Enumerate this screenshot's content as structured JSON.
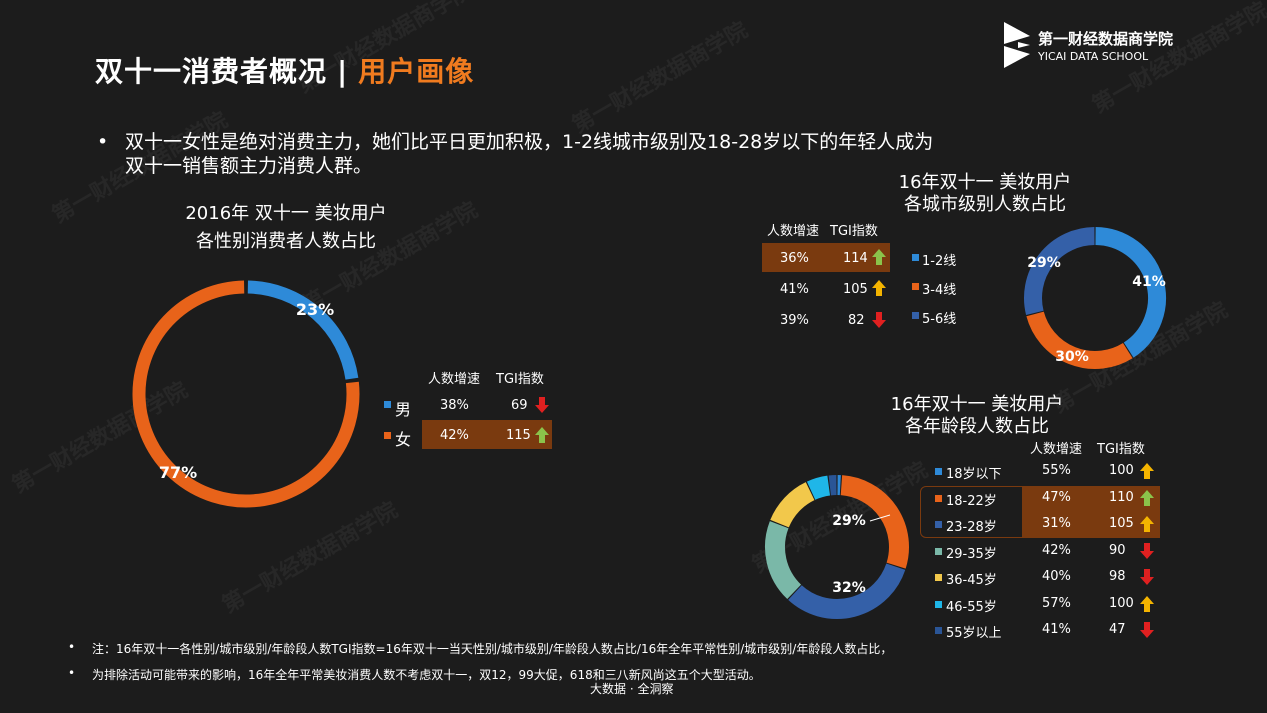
{
  "header": {
    "title_main": "双十一消费者概况",
    "title_sep": "|",
    "title_highlight": "用户画像"
  },
  "logo": {
    "name": "第一财经数据商学院",
    "sub": "YICAI DATA SCHOOL"
  },
  "watermark": "第一财经数据商学院",
  "bullet": {
    "marker": "•",
    "line1": "双十一女性是绝对消费主力，她们比平日更加积极，1-2线城市级别及18-28岁以下的年轻人成为",
    "line2": "双十一销售额主力消费人群。"
  },
  "colors": {
    "orange": "#e8631a",
    "blue": "#2e8ad8",
    "navy": "#3460a8",
    "teal": "#7ab8a8",
    "yellow": "#f2c84b",
    "cyan": "#1fb6e8",
    "darkblue": "#2a5596",
    "highlight": "#7a3a0f",
    "green_arrow": "#8bc34a",
    "yellow_arrow": "#f4b400",
    "red_arrow": "#e02020"
  },
  "chart_data": [
    {
      "type": "pie",
      "title": "2016年 双十一 美妆用户",
      "subtitle": "各性别消费者人数占比",
      "categories": [
        "男",
        "女"
      ],
      "values": [
        23,
        77
      ],
      "labels": [
        "23%",
        "77%"
      ],
      "colors": [
        "#2e8ad8",
        "#e8631a"
      ],
      "table": {
        "headers": [
          "人数增速",
          "TGI指数"
        ],
        "rows": [
          {
            "name": "男",
            "growth": "38%",
            "tgi": "69",
            "arrow": "down",
            "highlight": false
          },
          {
            "name": "女",
            "growth": "42%",
            "tgi": "115",
            "arrow": "up-green",
            "highlight": true
          }
        ]
      }
    },
    {
      "type": "pie",
      "title": "16年双十一 美妆用户",
      "subtitle": "各城市级别人数占比",
      "categories": [
        "1-2线",
        "3-4线",
        "5-6线"
      ],
      "values": [
        41,
        30,
        29
      ],
      "labels": [
        "41%",
        "30%",
        "29%"
      ],
      "colors": [
        "#2e8ad8",
        "#e8631a",
        "#3460a8"
      ],
      "table": {
        "headers": [
          "人数增速",
          "TGI指数"
        ],
        "rows": [
          {
            "name": "1-2线",
            "growth": "36%",
            "tgi": "114",
            "arrow": "up-green",
            "highlight": true
          },
          {
            "name": "3-4线",
            "growth": "41%",
            "tgi": "105",
            "arrow": "up-yellow",
            "highlight": false
          },
          {
            "name": "5-6线",
            "growth": "39%",
            "tgi": "82",
            "arrow": "down",
            "highlight": false
          }
        ]
      }
    },
    {
      "type": "pie",
      "title": "16年双十一 美妆用户",
      "subtitle": "各年龄段人数占比",
      "categories": [
        "18岁以下",
        "18-22岁",
        "23-28岁",
        "29-35岁",
        "36-45岁",
        "46-55岁",
        "55岁以上"
      ],
      "values": [
        1,
        29,
        32,
        19,
        12,
        5,
        2
      ],
      "labels": [
        "",
        "29%",
        "32%",
        "",
        "",
        "",
        ""
      ],
      "colors": [
        "#2e8ad8",
        "#e8631a",
        "#3460a8",
        "#7ab8a8",
        "#f2c84b",
        "#1fb6e8",
        "#2a5596"
      ],
      "table": {
        "headers": [
          "人数增速",
          "TGI指数"
        ],
        "rows": [
          {
            "name": "18岁以下",
            "growth": "55%",
            "tgi": "100",
            "arrow": "up-yellow",
            "highlight": false
          },
          {
            "name": "18-22岁",
            "growth": "47%",
            "tgi": "110",
            "arrow": "up-green",
            "highlight": true
          },
          {
            "name": "23-28岁",
            "growth": "31%",
            "tgi": "105",
            "arrow": "up-yellow",
            "highlight": true
          },
          {
            "name": "29-35岁",
            "growth": "42%",
            "tgi": "90",
            "arrow": "down",
            "highlight": false
          },
          {
            "name": "36-45岁",
            "growth": "40%",
            "tgi": "98",
            "arrow": "down",
            "highlight": false
          },
          {
            "name": "46-55岁",
            "growth": "57%",
            "tgi": "100",
            "arrow": "up-yellow",
            "highlight": false
          },
          {
            "name": "55岁以上",
            "growth": "41%",
            "tgi": "47",
            "arrow": "down",
            "highlight": false
          }
        ]
      }
    }
  ],
  "notes": {
    "marker": "•",
    "note1": "注：16年双十一各性别/城市级别/年龄段人数TGI指数=16年双十一当天性别/城市级别/年龄段人数占比/16年全年平常性别/城市级别/年龄段人数占比，",
    "note2": "为排除活动可能带来的影响，16年全年平常美妆消费人数不考虑双十一，双12，99大促，618和三八新风尚这五个大型活动。"
  },
  "footer": "大数据 · 全洞察"
}
